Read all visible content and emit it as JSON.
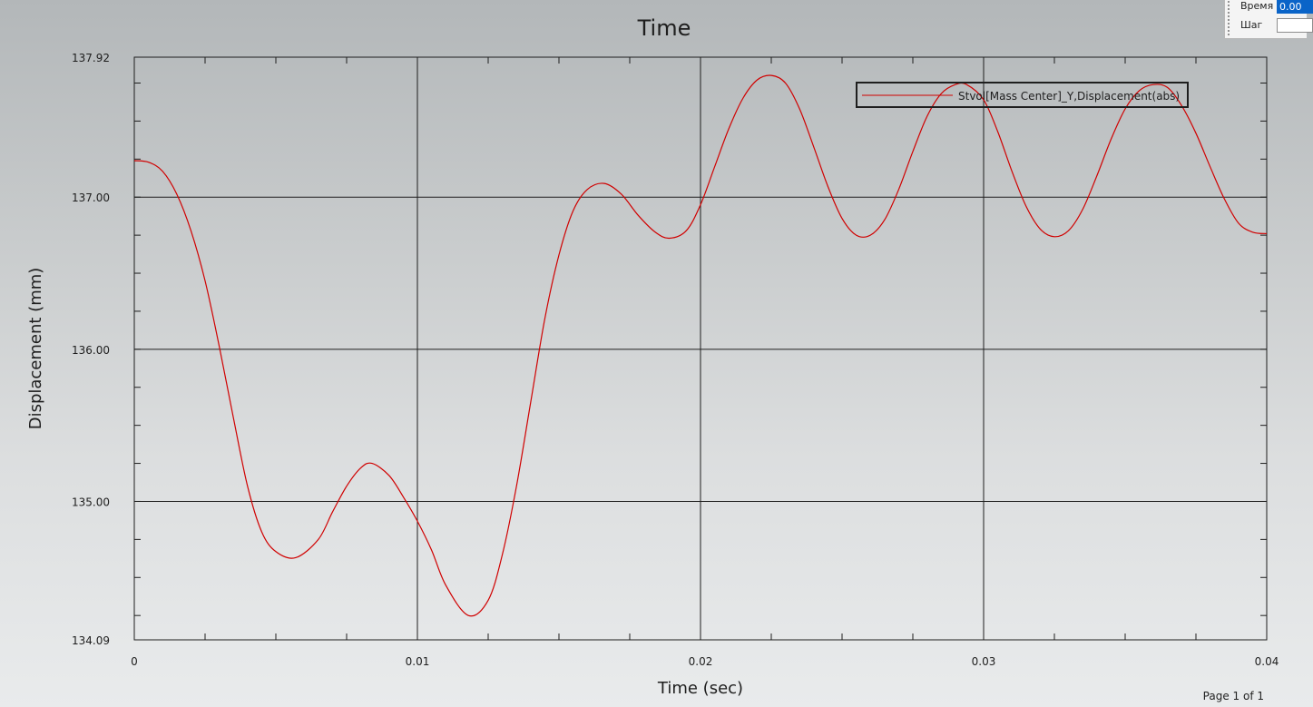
{
  "controls": {
    "time_label": "Время",
    "time_value": "0.00",
    "step_label": "Шаг",
    "step_value": ""
  },
  "footer": {
    "page_info": "Page 1 of 1"
  },
  "chart_data": {
    "type": "line",
    "title": "Time",
    "xlabel": "Time (sec)",
    "ylabel": "Displacement (mm)",
    "xlim": [
      0,
      0.04
    ],
    "ylim": [
      134.09,
      137.92
    ],
    "xticks": [
      "0",
      "0.01",
      "0.02",
      "0.03",
      "0.04"
    ],
    "yticks": [
      "137.92",
      "137.00",
      "136.00",
      "135.00",
      "134.09"
    ],
    "grid": true,
    "legend_position": "top-right",
    "colors": {
      "series": "#d00000",
      "grid": "#1e1e1e"
    },
    "series": [
      {
        "name": "Stvol[Mass Center]_Y,Displacement(abs)",
        "x": [
          0,
          0.0005,
          0.001,
          0.0015,
          0.002,
          0.0025,
          0.003,
          0.0035,
          0.004,
          0.0045,
          0.005,
          0.0057,
          0.0065,
          0.007,
          0.0075,
          0.008,
          0.0084,
          0.009,
          0.0095,
          0.01,
          0.0105,
          0.011,
          0.0118,
          0.0125,
          0.013,
          0.0135,
          0.014,
          0.0145,
          0.015,
          0.0155,
          0.016,
          0.0166,
          0.0172,
          0.0178,
          0.0184,
          0.0189,
          0.0195,
          0.02,
          0.0205,
          0.021,
          0.0215,
          0.022,
          0.0225,
          0.023,
          0.0235,
          0.024,
          0.0245,
          0.025,
          0.0255,
          0.026,
          0.0265,
          0.027,
          0.0275,
          0.028,
          0.0285,
          0.029,
          0.0294,
          0.03,
          0.0305,
          0.031,
          0.0315,
          0.032,
          0.0325,
          0.033,
          0.0335,
          0.034,
          0.0345,
          0.035,
          0.0355,
          0.036,
          0.0365,
          0.037,
          0.0375,
          0.038,
          0.0385,
          0.039,
          0.0395,
          0.04
        ],
        "values": [
          137.24,
          137.23,
          137.17,
          137.02,
          136.78,
          136.45,
          136.02,
          135.55,
          135.1,
          134.8,
          134.67,
          134.63,
          134.75,
          134.93,
          135.1,
          135.22,
          135.25,
          135.17,
          135.03,
          134.87,
          134.68,
          134.45,
          134.25,
          134.35,
          134.65,
          135.1,
          135.65,
          136.2,
          136.62,
          136.91,
          137.05,
          137.09,
          137.02,
          136.88,
          136.77,
          136.73,
          136.78,
          136.95,
          137.2,
          137.45,
          137.65,
          137.77,
          137.8,
          137.75,
          137.58,
          137.33,
          137.07,
          136.86,
          136.75,
          136.75,
          136.85,
          137.05,
          137.3,
          137.53,
          137.68,
          137.74,
          137.74,
          137.64,
          137.43,
          137.17,
          136.94,
          136.79,
          136.74,
          136.78,
          136.92,
          137.14,
          137.38,
          137.58,
          137.7,
          137.74,
          137.72,
          137.6,
          137.42,
          137.2,
          136.99,
          136.83,
          136.77,
          136.76
        ]
      }
    ]
  }
}
